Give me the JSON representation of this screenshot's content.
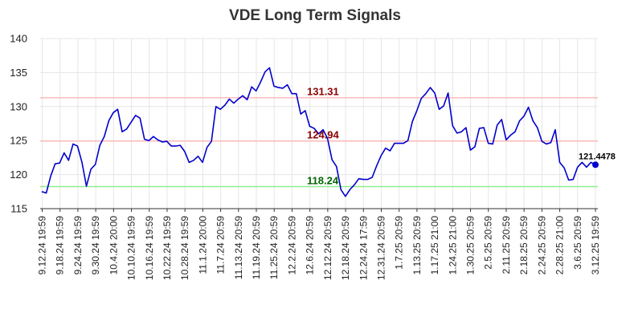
{
  "chart_data": {
    "type": "line",
    "title": "VDE Long Term Signals",
    "xlabel": "",
    "ylabel": "",
    "ylim": [
      115,
      140
    ],
    "grid": true,
    "yticks": [
      115,
      120,
      125,
      130,
      135,
      140
    ],
    "xtick_labels": [
      "9.12.24 19:59",
      "9.18.24 19:59",
      "9.24.24 19:59",
      "9.30.24 19:59",
      "10.4.24 20:00",
      "10.10.24 19:59",
      "10.16.24 19:59",
      "10.22.24 19:59",
      "10.28.24 19:59",
      "11.1.24 20:00",
      "11.7.24 20:59",
      "11.13.24 20:59",
      "11.19.24 20:59",
      "11.25.24 20:59",
      "12.2.24 20:59",
      "12.6.24 20:59",
      "12.12.24 20:59",
      "12.18.24 20:59",
      "12.24.24 17:59",
      "12.31.24 20:59",
      "1.7.25 20:59",
      "1.13.25 20:59",
      "1.17.25 21:00",
      "1.24.25 21:00",
      "1.30.25 20:59",
      "2.5.25 20:59",
      "2.11.25 20:59",
      "2.18.25 20:59",
      "2.24.25 20:59",
      "2.28.25 21:00",
      "3.6.25 20:59",
      "3.12.25 19:59"
    ],
    "series": [
      {
        "color": "#0000cc",
        "values": [
          117.5,
          117.3,
          119.8,
          121.6,
          121.7,
          123.2,
          122.1,
          124.5,
          124.2,
          121.8,
          118.3,
          120.8,
          121.5,
          124.3,
          125.6,
          127.9,
          129.1,
          129.6,
          126.3,
          126.7,
          127.7,
          128.7,
          128.3,
          125.2,
          125.0,
          125.6,
          125.1,
          124.8,
          124.9,
          124.2,
          124.2,
          124.3,
          123.4,
          121.8,
          122.1,
          122.7,
          121.8,
          124.0,
          124.9,
          130.0,
          129.6,
          130.2,
          131.1,
          130.5,
          131.1,
          131.6,
          131.0,
          132.9,
          132.3,
          133.6,
          135.1,
          135.7,
          133.0,
          132.8,
          132.7,
          133.2,
          131.9,
          131.9,
          128.9,
          129.4,
          127.1,
          126.8,
          126.0,
          126.6,
          125.3,
          122.2,
          121.2,
          117.8,
          116.8,
          117.8,
          118.5,
          119.4,
          119.3,
          119.3,
          119.6,
          121.3,
          122.8,
          123.9,
          123.5,
          124.6,
          124.6,
          124.6,
          125.0,
          127.8,
          129.4,
          131.2,
          131.9,
          132.8,
          132.0,
          129.6,
          130.1,
          132.0,
          127.2,
          126.1,
          126.3,
          126.9,
          123.6,
          124.1,
          126.8,
          126.9,
          124.6,
          124.5,
          127.3,
          128.1,
          125.1,
          125.8,
          126.3,
          127.9,
          128.6,
          129.9,
          127.9,
          126.9,
          124.9,
          124.5,
          124.7,
          126.6,
          121.8,
          121.0,
          119.2,
          119.3,
          121.1,
          121.8,
          121.1,
          121.8,
          121.45
        ]
      }
    ],
    "hlines": [
      {
        "value": 131.31,
        "label": "131.31",
        "line_color": "#ffbbbb",
        "label_color": "#8b0000"
      },
      {
        "value": 124.94,
        "label": "124.94",
        "line_color": "#ffbbbb",
        "label_color": "#8b0000"
      },
      {
        "value": 118.24,
        "label": "118.24",
        "line_color": "#90ee90",
        "label_color": "#006400"
      }
    ],
    "last_value_label": "121.4478"
  }
}
